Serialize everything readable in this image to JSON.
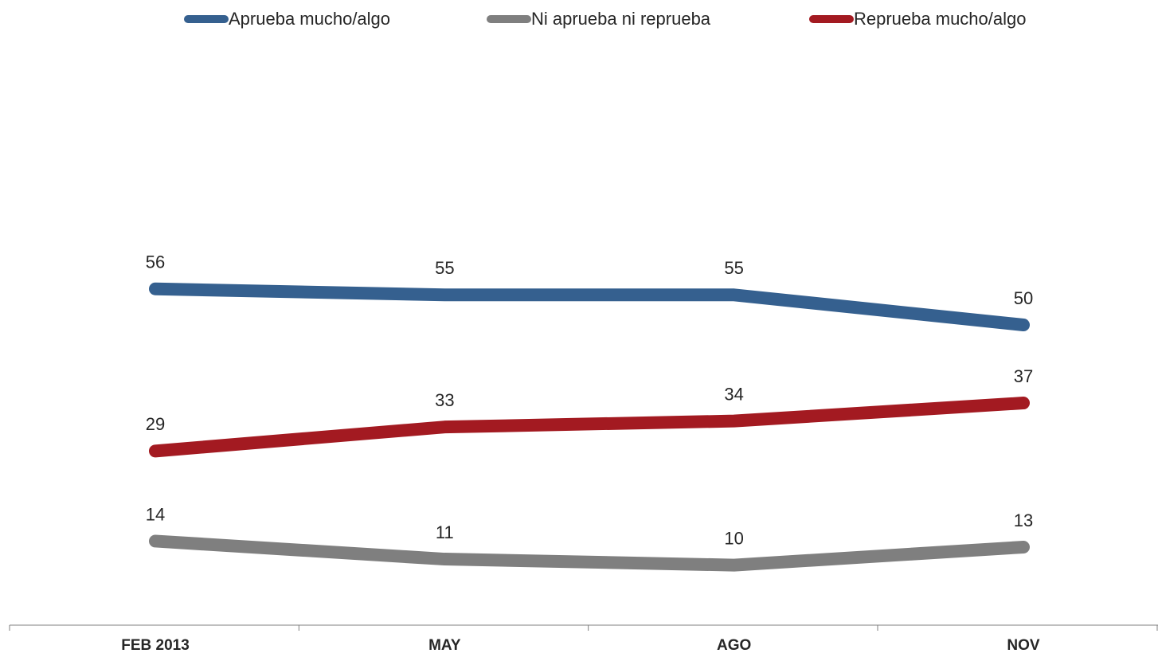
{
  "chart_data": {
    "type": "line",
    "categories": [
      "FEB 2013",
      "MAY",
      "AGO",
      "NOV"
    ],
    "series": [
      {
        "name": "Aprueba mucho/algo",
        "color": "#35608f",
        "values": [
          56,
          55,
          55,
          50
        ]
      },
      {
        "name": "Ni aprueba ni reprueba",
        "color": "#7f7f7f",
        "values": [
          14,
          11,
          10,
          13
        ]
      },
      {
        "name": "Reprueba mucho/algo",
        "color": "#a31a21",
        "values": [
          29,
          33,
          34,
          37
        ]
      }
    ],
    "ylim": [
      0,
      100
    ],
    "legend": "top"
  }
}
